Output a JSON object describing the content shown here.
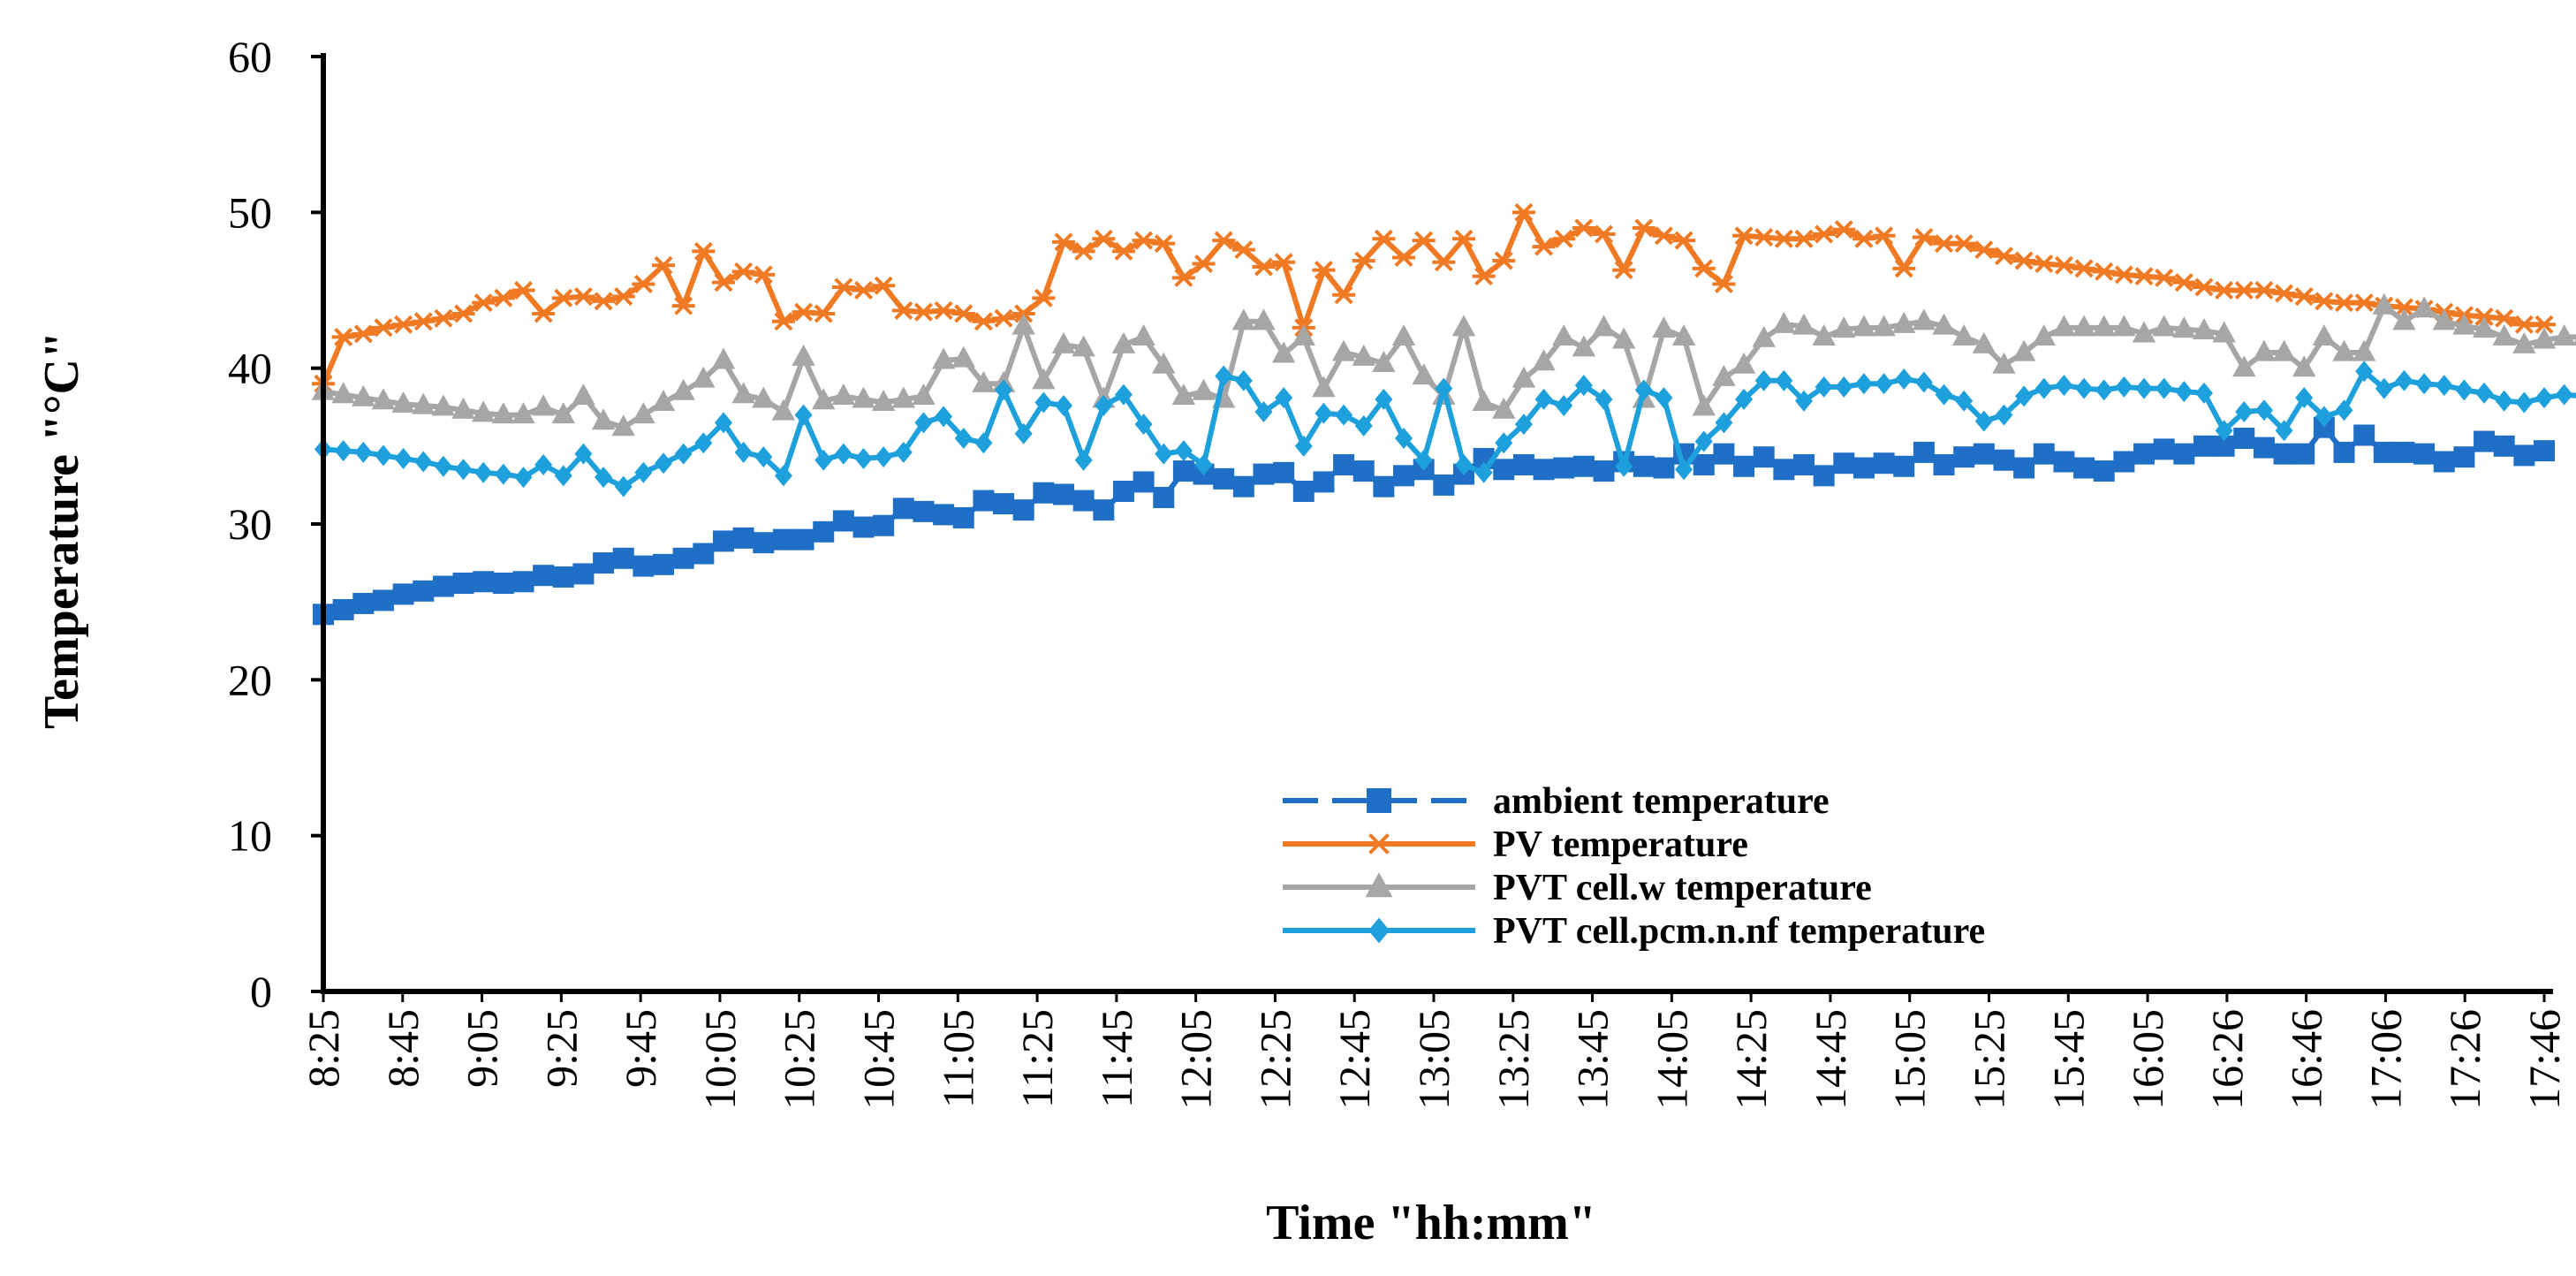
{
  "chart_data": {
    "type": "line",
    "title": "",
    "xlabel": "Time \"hh:mm\"",
    "ylabel": "Temperature \"°C\"",
    "ylim": [
      0,
      60
    ],
    "yticks": [
      0,
      10,
      20,
      30,
      40,
      50,
      60
    ],
    "xtick_labels": [
      "8:25",
      "8:45",
      "9:05",
      "9:25",
      "9:45",
      "10:05",
      "10:25",
      "10:45",
      "11:05",
      "11:25",
      "11:45",
      "12:05",
      "12:25",
      "12:45",
      "13:05",
      "13:25",
      "13:45",
      "14:05",
      "14:25",
      "14:45",
      "15:05",
      "15:25",
      "15:45",
      "16:05",
      "16:26",
      "16:46",
      "17:06",
      "17:26",
      "17:46"
    ],
    "legend_position": "bottom-right",
    "grid": false,
    "series": [
      {
        "name": "ambient temperature",
        "color": "#1F6FC6",
        "marker": "square",
        "dashed": true,
        "values": [
          24.2,
          24.5,
          24.9,
          25.1,
          25.5,
          25.7,
          26.0,
          26.2,
          26.3,
          26.2,
          26.3,
          26.7,
          26.6,
          26.8,
          27.5,
          27.8,
          27.3,
          27.4,
          27.8,
          28.1,
          28.9,
          29.1,
          28.8,
          29.0,
          29.0,
          29.5,
          30.2,
          29.8,
          29.9,
          31.0,
          30.8,
          30.6,
          30.4,
          31.5,
          31.3,
          30.9,
          32.0,
          31.9,
          31.5,
          30.9,
          32.1,
          32.7,
          31.7,
          33.4,
          33.2,
          32.9,
          32.4,
          33.2,
          33.3,
          32.1,
          32.7,
          33.8,
          33.4,
          32.4,
          33.1,
          33.5,
          32.5,
          33.2,
          34.2,
          33.5,
          33.8,
          33.5,
          33.6,
          33.7,
          33.4,
          34.0,
          33.7,
          33.6,
          34.5,
          33.8,
          34.5,
          33.7,
          34.3,
          33.5,
          33.8,
          33.1,
          33.9,
          33.6,
          33.9,
          33.7,
          34.6,
          33.8,
          34.3,
          34.5,
          34.1,
          33.6,
          34.5,
          34.0,
          33.6,
          33.4,
          34.0,
          34.5,
          34.8,
          34.5,
          35.0,
          35.0,
          35.5,
          34.9,
          34.5,
          34.5,
          36.2,
          34.6,
          35.7,
          34.6,
          34.6,
          34.5,
          34.0,
          34.3,
          35.3,
          35.0,
          34.4,
          34.7
        ]
      },
      {
        "name": "PV temperature",
        "color": "#F07A24",
        "marker": "star",
        "dashed": false,
        "values": [
          39.0,
          42.0,
          42.2,
          42.6,
          42.8,
          43.0,
          43.2,
          43.5,
          44.2,
          44.5,
          45.0,
          43.5,
          44.5,
          44.6,
          44.3,
          44.6,
          45.4,
          46.6,
          44.0,
          47.5,
          45.5,
          46.2,
          46.0,
          43.0,
          43.6,
          43.5,
          45.2,
          45.0,
          45.3,
          43.7,
          43.6,
          43.7,
          43.5,
          43.0,
          43.2,
          43.5,
          44.5,
          48.1,
          47.5,
          48.3,
          47.5,
          48.2,
          48.0,
          45.8,
          46.7,
          48.2,
          47.6,
          46.5,
          46.8,
          42.6,
          46.3,
          44.7,
          46.9,
          48.3,
          47.1,
          48.2,
          46.8,
          48.3,
          45.9,
          46.9,
          50.0,
          47.8,
          48.3,
          49.0,
          48.6,
          46.3,
          49.0,
          48.5,
          48.2,
          46.4,
          45.4,
          48.5,
          48.4,
          48.3,
          48.3,
          48.6,
          48.9,
          48.3,
          48.5,
          46.4,
          48.4,
          48.0,
          48.0,
          47.6,
          47.2,
          46.9,
          46.7,
          46.6,
          46.4,
          46.2,
          46.0,
          45.9,
          45.8,
          45.5,
          45.2,
          45.0,
          45.0,
          45.0,
          44.8,
          44.6,
          44.3,
          44.2,
          44.2,
          44.0,
          43.9,
          43.8,
          43.6,
          43.4,
          43.3,
          43.2,
          42.8,
          42.8
        ]
      },
      {
        "name": "PVT cell.w temperature",
        "color": "#A6A6A6",
        "marker": "triangle",
        "dashed": false,
        "values": [
          38.5,
          38.3,
          38.1,
          37.9,
          37.7,
          37.6,
          37.5,
          37.3,
          37.1,
          37.0,
          37.0,
          37.5,
          37.0,
          38.2,
          36.6,
          36.2,
          37.0,
          37.8,
          38.5,
          39.3,
          40.5,
          38.3,
          38.0,
          37.2,
          40.7,
          37.9,
          38.2,
          38.0,
          37.8,
          38.0,
          38.2,
          40.5,
          40.6,
          39.0,
          39.0,
          42.7,
          39.2,
          41.5,
          41.3,
          38.0,
          41.5,
          42.0,
          40.2,
          38.2,
          38.5,
          38.0,
          43.0,
          43.0,
          40.9,
          42.0,
          38.7,
          41.0,
          40.7,
          40.3,
          42.0,
          39.5,
          38.2,
          42.6,
          37.8,
          37.3,
          39.3,
          40.4,
          42.0,
          41.3,
          42.6,
          41.8,
          38.0,
          42.5,
          42.0,
          37.5,
          39.4,
          40.2,
          41.9,
          42.8,
          42.7,
          42.0,
          42.5,
          42.6,
          42.6,
          42.8,
          43.0,
          42.7,
          42.0,
          41.5,
          40.2,
          41.0,
          42.0,
          42.6,
          42.6,
          42.6,
          42.6,
          42.2,
          42.6,
          42.5,
          42.4,
          42.2,
          40.0,
          41.0,
          41.0,
          40.0,
          42.0,
          41.0,
          41.0,
          44.0,
          43.0,
          43.8,
          43.0,
          42.7,
          42.5,
          42.0,
          41.5,
          41.8,
          42.0,
          42.0,
          42.5,
          42.3
        ]
      },
      {
        "name": "PVT cell.pcm.n.nf temperature",
        "color": "#1EA0DC",
        "marker": "diamond",
        "dashed": false,
        "values": [
          34.8,
          34.7,
          34.6,
          34.4,
          34.2,
          34.0,
          33.7,
          33.5,
          33.3,
          33.2,
          33.0,
          33.8,
          33.1,
          34.5,
          33.0,
          32.4,
          33.3,
          33.9,
          34.5,
          35.2,
          36.5,
          34.6,
          34.3,
          33.1,
          37.0,
          34.1,
          34.5,
          34.2,
          34.3,
          34.6,
          36.5,
          36.9,
          35.5,
          35.2,
          38.6,
          35.8,
          37.8,
          37.6,
          34.1,
          37.6,
          38.3,
          36.4,
          34.5,
          34.7,
          33.8,
          39.5,
          39.2,
          37.2,
          38.1,
          35.0,
          37.1,
          37.0,
          36.3,
          38.0,
          35.5,
          34.1,
          38.7,
          33.8,
          33.3,
          35.2,
          36.4,
          38.0,
          37.6,
          38.9,
          38.0,
          33.7,
          38.6,
          38.1,
          33.5,
          35.3,
          36.5,
          38.0,
          39.2,
          39.2,
          37.9,
          38.8,
          38.8,
          39.0,
          39.0,
          39.3,
          39.1,
          38.3,
          37.9,
          36.6,
          37.0,
          38.2,
          38.7,
          38.9,
          38.7,
          38.6,
          38.8,
          38.7,
          38.7,
          38.5,
          38.4,
          36.0,
          37.2,
          37.3,
          36.0,
          38.1,
          36.9,
          37.3,
          39.8,
          38.7,
          39.2,
          39.0,
          38.9,
          38.6,
          38.4,
          37.9,
          37.8,
          38.1,
          38.3,
          38.2,
          38.6,
          38.6
        ]
      }
    ]
  }
}
